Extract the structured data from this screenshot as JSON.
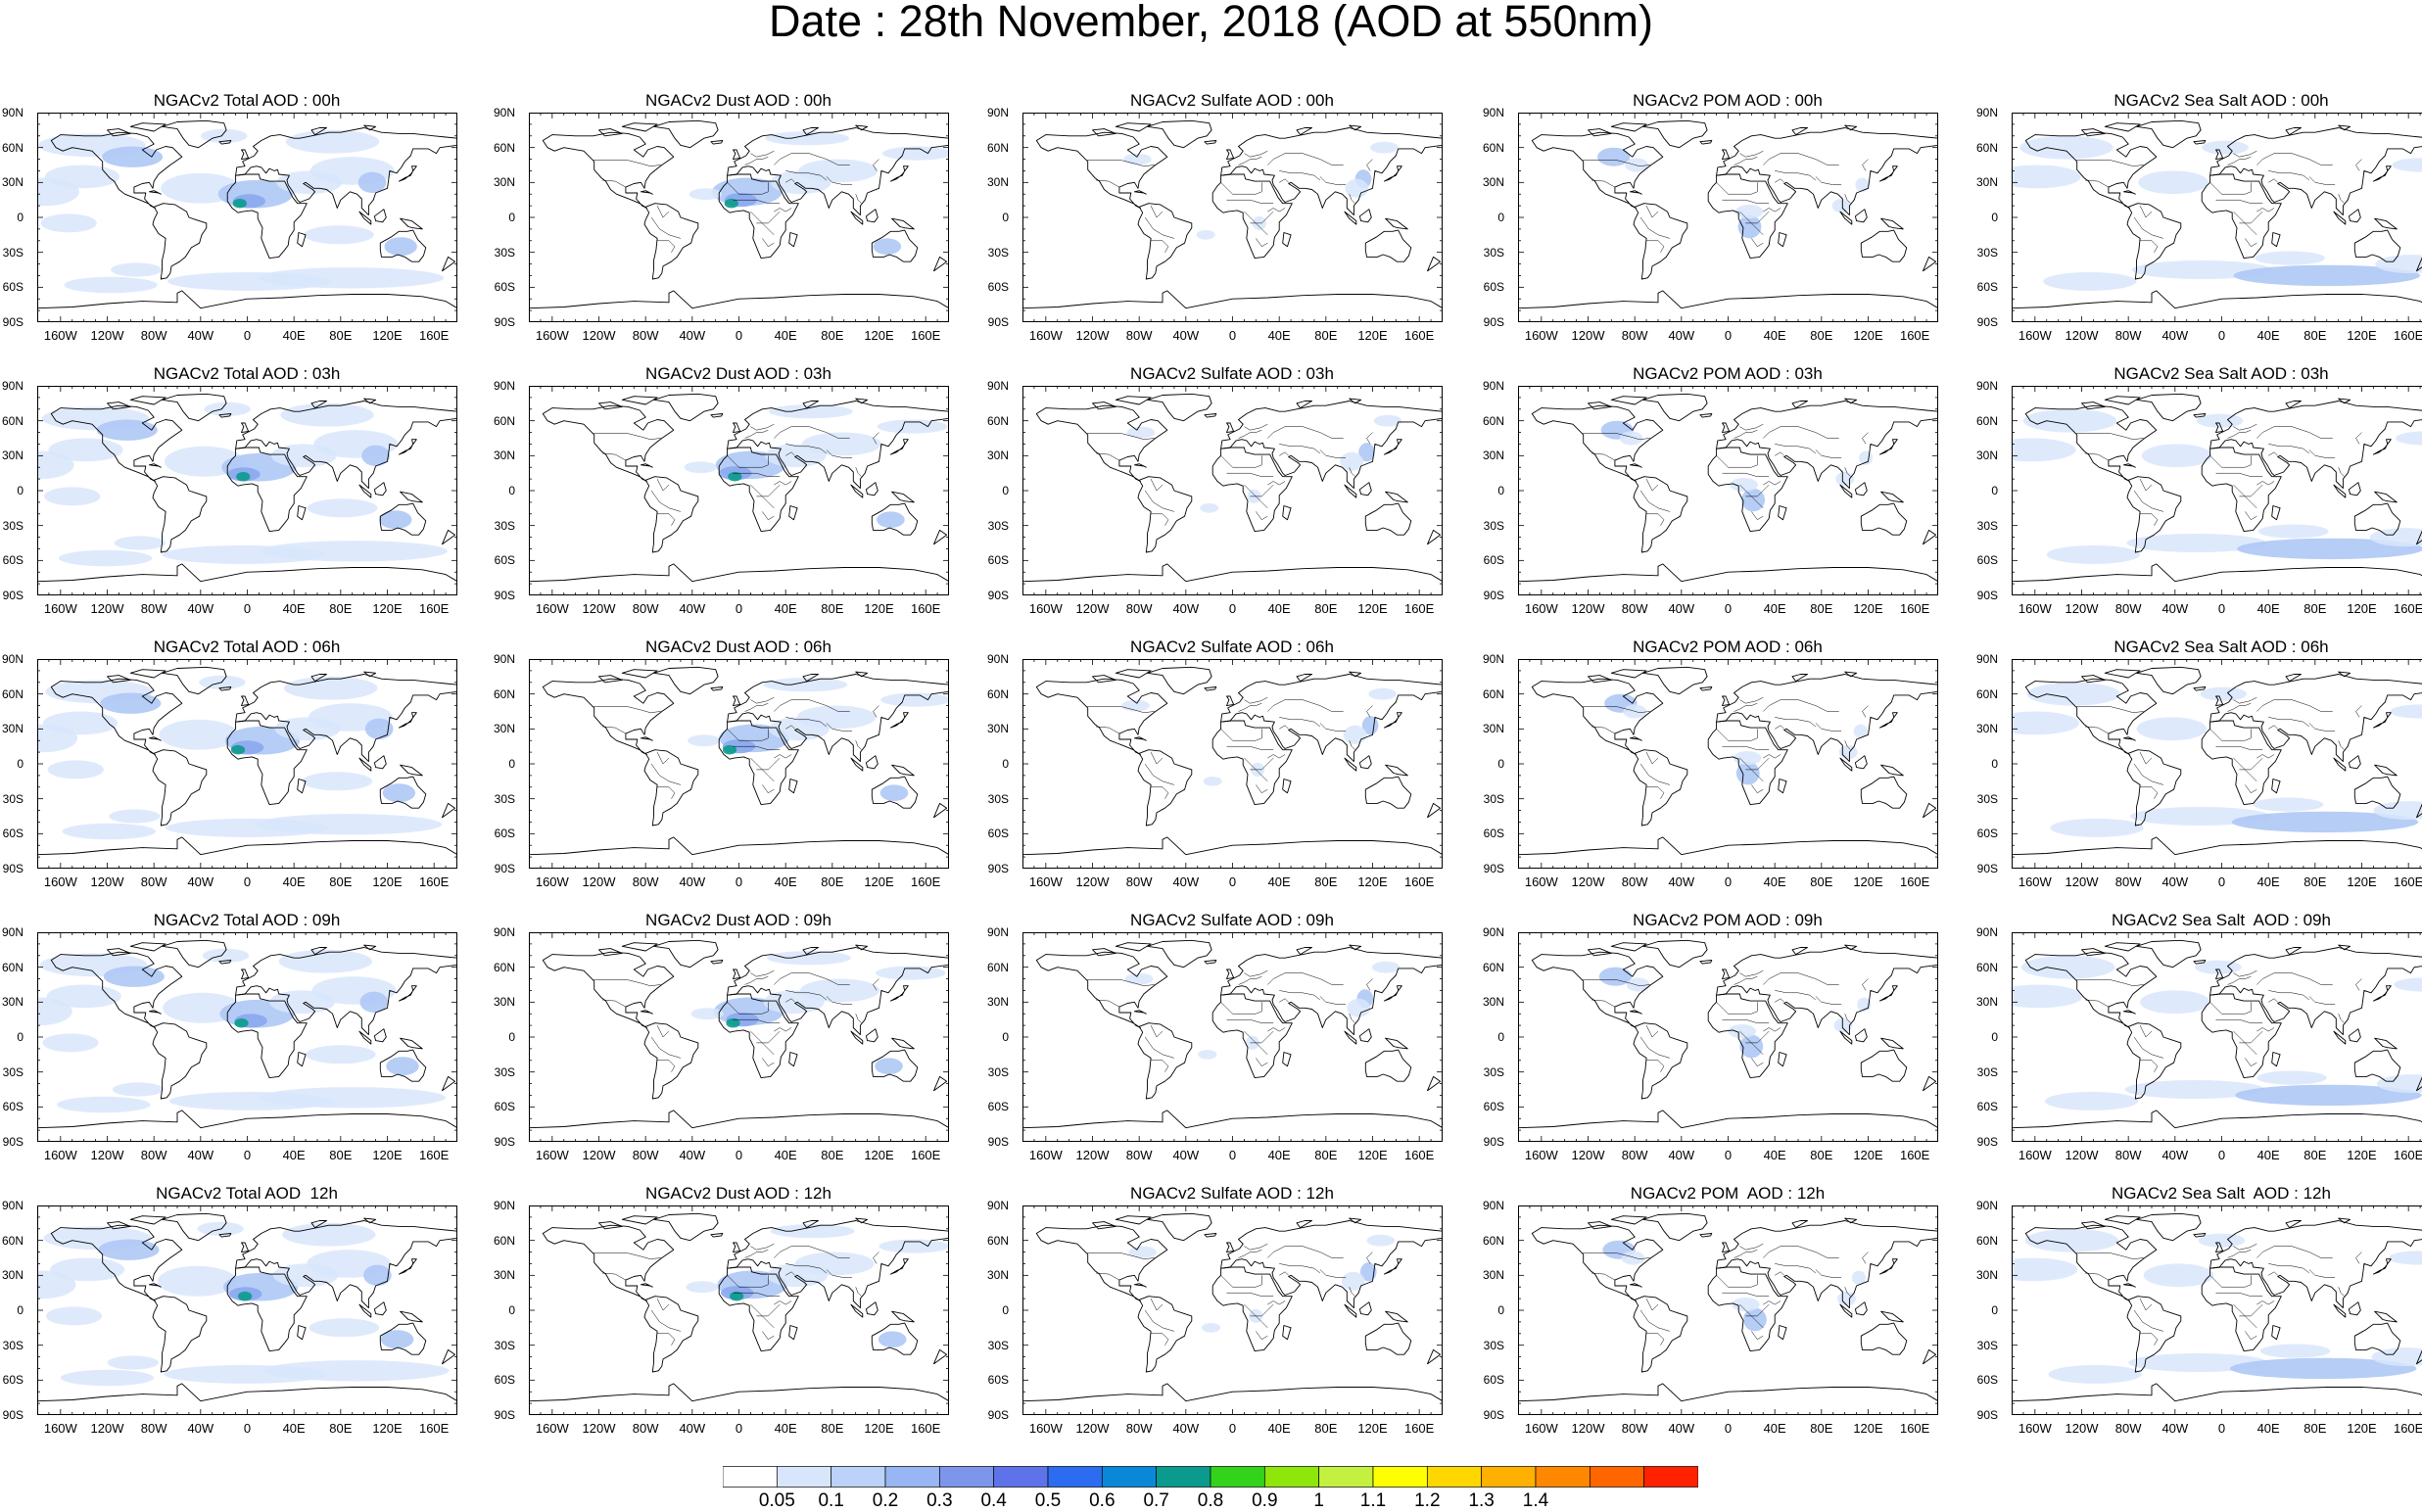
{
  "title": "Date : 28th November, 2018 (AOD at 550nm)",
  "axes": {
    "lat_labels": [
      "90N",
      "60N",
      "30N",
      "0",
      "30S",
      "60S",
      "90S"
    ],
    "lat_values": [
      90,
      60,
      30,
      0,
      -30,
      -60,
      -90
    ],
    "lon_labels": [
      "160W",
      "120W",
      "80W",
      "40W",
      "0",
      "40E",
      "80E",
      "120E",
      "160E"
    ],
    "lon_values": [
      -160,
      -120,
      -80,
      -40,
      0,
      40,
      80,
      120,
      160
    ]
  },
  "colorbar": {
    "labels": [
      "0.05",
      "0.1",
      "0.2",
      "0.3",
      "0.4",
      "0.5",
      "0.6",
      "0.7",
      "0.8",
      "0.9",
      "1",
      "1.1",
      "1.2",
      "1.3",
      "1.4"
    ],
    "colors": [
      "#ffffff",
      "#d8e6fb",
      "#bcd2f8",
      "#98b6f3",
      "#7d96ec",
      "#5e73ea",
      "#2c6cf0",
      "#0a88d8",
      "#0a9b8c",
      "#32d31a",
      "#8ee60a",
      "#c4f040",
      "#ffff00",
      "#ffd700",
      "#ffb000",
      "#ff8800",
      "#ff6600",
      "#ff2200"
    ]
  },
  "colors": {
    "land_outline": "#000000",
    "aod_light": "#d8e6fb",
    "aod_medium": "#aec8f5",
    "aod_high": "#8aa9ee",
    "aod_peak": "#0a9b8c"
  },
  "panels": [
    [
      "NGACv2 Total AOD : 00h",
      "NGACv2 Dust AOD : 00h",
      "NGACv2 Sulfate AOD : 00h",
      "NGACv2 POM AOD : 00h",
      "NGACv2 Sea Salt AOD : 00h"
    ],
    [
      "NGACv2 Total AOD : 03h",
      "NGACv2 Dust AOD : 03h",
      "NGACv2 Sulfate AOD : 03h",
      "NGACv2 POM AOD : 03h",
      "NGACv2 Sea Salt AOD : 03h"
    ],
    [
      "NGACv2 Total AOD : 06h",
      "NGACv2 Dust AOD : 06h",
      "NGACv2 Sulfate AOD : 06h",
      "NGACv2 POM AOD : 06h",
      "NGACv2 Sea Salt AOD : 06h"
    ],
    [
      "NGACv2 Total AOD : 09h",
      "NGACv2 Dust AOD : 09h",
      "NGACv2 Sulfate AOD : 09h",
      "NGACv2 POM AOD : 09h",
      "NGACv2 Sea Salt  AOD : 09h"
    ],
    [
      "NGACv2 Total AOD  12h",
      "NGACv2 Dust AOD : 12h",
      "NGACv2 Sulfate AOD : 12h",
      "NGACv2 POM  AOD : 12h",
      "NGACv2 Sea Salt  AOD : 12h"
    ]
  ]
}
